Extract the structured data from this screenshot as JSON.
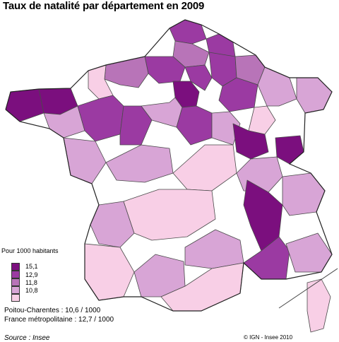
{
  "title": "Taux de natalité par département en 2009",
  "legend": {
    "title": "Pour 1000 habitants",
    "thresholds": [
      "15,1",
      "12,9",
      "11,8",
      "10,8"
    ],
    "colors": [
      "#7b0f7e",
      "#9b3aa2",
      "#b874b8",
      "#d8a5d6",
      "#f8cfe6"
    ]
  },
  "notes": {
    "region": "Poitou-Charentes : 10,6 / 1000",
    "national": "France métropolitaine : 12,7 / 1000"
  },
  "source": "Source : Insee",
  "copyright": "© IGN - Insee 2010"
}
